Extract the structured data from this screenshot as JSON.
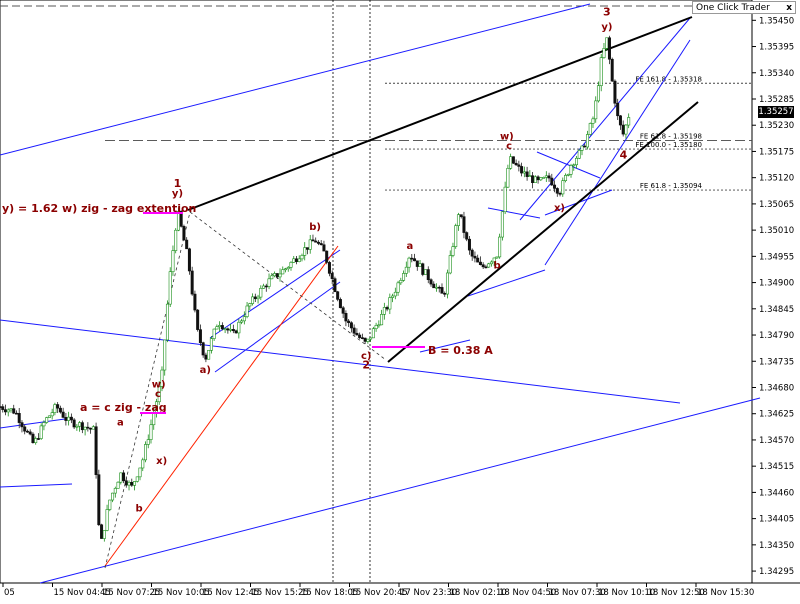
{
  "widget": {
    "title": "One Click Trader",
    "close": "x"
  },
  "current_price": "1.35257",
  "chart_data": {
    "type": "candlestick",
    "symbol_hint": "",
    "price_axis": {
      "ticks": [
        "1.35450",
        "1.35395",
        "1.35340",
        "1.35285",
        "1.35230",
        "1.35175",
        "1.35120",
        "1.35065",
        "1.35010",
        "1.34955",
        "1.34900",
        "1.34845",
        "1.34790",
        "1.34735",
        "1.34680",
        "1.34625",
        "1.34570",
        "1.34515",
        "1.34460",
        "1.34405",
        "1.34350",
        "1.34295"
      ],
      "range": [
        1.3427,
        1.3548
      ]
    },
    "time_axis": {
      "ticks": [
        "05",
        "15 Nov 04:45",
        "15 Nov 07:25",
        "15 Nov 10:05",
        "15 Nov 12:45",
        "15 Nov 15:25",
        "15 Nov 18:05",
        "15 Nov 20:45",
        "17 Nov 23:30",
        "18 Nov 02:10",
        "18 Nov 04:50",
        "18 Nov 07:30",
        "18 Nov 10:10",
        "18 Nov 12:50",
        "18 Nov 15:30"
      ]
    },
    "fib_levels": [
      {
        "label": "FE 161.8 - 1.35318",
        "price": 1.35318
      },
      {
        "label": "FE 61.8 - 1.35198",
        "price": 1.35198
      },
      {
        "label": "FE 100.0 - 1.35180",
        "price": 1.3518
      },
      {
        "label": "FE 61.8 - 1.35094",
        "price": 1.35094
      }
    ],
    "wave_labels": [
      {
        "text": "1",
        "price": 1.351,
        "t": 0.236,
        "bold": true
      },
      {
        "text": "y)",
        "price": 1.3508,
        "t": 0.236
      },
      {
        "text": "2",
        "price": 1.3472,
        "t": 0.487,
        "bold": true
      },
      {
        "text": "c)",
        "price": 1.3474,
        "t": 0.487
      },
      {
        "text": "3",
        "price": 1.3546,
        "t": 0.807,
        "bold": true
      },
      {
        "text": "y)",
        "price": 1.3543,
        "t": 0.807
      },
      {
        "text": "4",
        "price": 1.3516,
        "t": 0.829,
        "bold": true
      },
      {
        "text": "a",
        "price": 1.346,
        "t": 0.16
      },
      {
        "text": "b",
        "price": 1.3442,
        "t": 0.185
      },
      {
        "text": "c",
        "price": 1.3466,
        "t": 0.21
      },
      {
        "text": "w)",
        "price": 1.3468,
        "t": 0.211
      },
      {
        "text": "x)",
        "price": 1.3452,
        "t": 0.215
      },
      {
        "text": "a)",
        "price": 1.3471,
        "t": 0.273
      },
      {
        "text": "b)",
        "price": 1.3501,
        "t": 0.419
      },
      {
        "text": "a",
        "price": 1.3497,
        "t": 0.545
      },
      {
        "text": "b",
        "price": 1.3493,
        "t": 0.661
      },
      {
        "text": "c",
        "price": 1.3518,
        "t": 0.677
      },
      {
        "text": "w)",
        "price": 1.352,
        "t": 0.674
      },
      {
        "text": "x)",
        "price": 1.3505,
        "t": 0.744
      }
    ],
    "annotations": [
      {
        "text": "y) = 1.62 w)   zig - zag extention"
      },
      {
        "text": "a = c   zig - zag"
      },
      {
        "text": "B = 0.38 A"
      }
    ],
    "candles_note": "approximate EURUSD-like intraday candles",
    "path": [
      [
        0.0,
        1.3464
      ],
      [
        0.02,
        1.3463
      ],
      [
        0.045,
        1.3456
      ],
      [
        0.06,
        1.3461
      ],
      [
        0.075,
        1.3464
      ],
      [
        0.09,
        1.3461
      ],
      [
        0.11,
        1.346
      ],
      [
        0.125,
        1.3459
      ],
      [
        0.133,
        1.3434
      ],
      [
        0.145,
        1.3444
      ],
      [
        0.16,
        1.345
      ],
      [
        0.175,
        1.3447
      ],
      [
        0.19,
        1.3453
      ],
      [
        0.205,
        1.3463
      ],
      [
        0.215,
        1.347
      ],
      [
        0.225,
        1.349
      ],
      [
        0.236,
        1.3505
      ],
      [
        0.25,
        1.3495
      ],
      [
        0.262,
        1.348
      ],
      [
        0.273,
        1.3474
      ],
      [
        0.29,
        1.3482
      ],
      [
        0.31,
        1.3479
      ],
      [
        0.33,
        1.3485
      ],
      [
        0.355,
        1.349
      ],
      [
        0.38,
        1.3493
      ],
      [
        0.405,
        1.3497
      ],
      [
        0.419,
        1.3499
      ],
      [
        0.432,
        1.3496
      ],
      [
        0.445,
        1.3489
      ],
      [
        0.46,
        1.3482
      ],
      [
        0.475,
        1.3479
      ],
      [
        0.487,
        1.3477
      ],
      [
        0.5,
        1.3481
      ],
      [
        0.515,
        1.3485
      ],
      [
        0.53,
        1.349
      ],
      [
        0.545,
        1.3496
      ],
      [
        0.56,
        1.3493
      ],
      [
        0.575,
        1.349
      ],
      [
        0.59,
        1.3487
      ],
      [
        0.61,
        1.3505
      ],
      [
        0.625,
        1.3496
      ],
      [
        0.64,
        1.3493
      ],
      [
        0.661,
        1.3496
      ],
      [
        0.677,
        1.3516
      ],
      [
        0.695,
        1.3513
      ],
      [
        0.715,
        1.3511
      ],
      [
        0.73,
        1.3512
      ],
      [
        0.744,
        1.3509
      ],
      [
        0.76,
        1.3515
      ],
      [
        0.775,
        1.3518
      ],
      [
        0.79,
        1.3525
      ],
      [
        0.8,
        1.3537
      ],
      [
        0.807,
        1.3541
      ],
      [
        0.815,
        1.3531
      ],
      [
        0.822,
        1.3524
      ],
      [
        0.829,
        1.3521
      ],
      [
        0.836,
        1.3525
      ]
    ]
  }
}
